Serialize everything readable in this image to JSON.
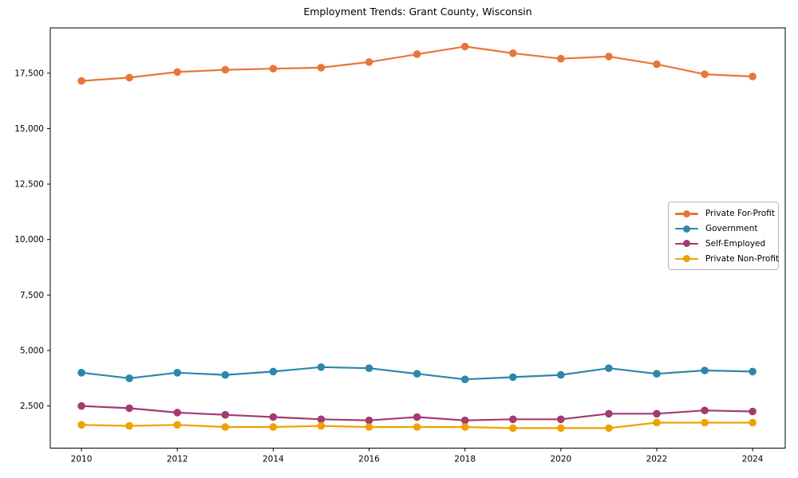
{
  "figure": {
    "title": "Employment Trends: Grant County, Wisconsin"
  },
  "chart_data": {
    "type": "line",
    "title": "Employment Trends: Grant County, Wisconsin",
    "xlabel": "",
    "ylabel": "",
    "x": [
      2010,
      2011,
      2012,
      2013,
      2014,
      2015,
      2016,
      2017,
      2018,
      2019,
      2020,
      2021,
      2022,
      2023,
      2024
    ],
    "series": [
      {
        "name": "Private For-Profit",
        "color": "#E8763B",
        "values": [
          17150,
          17300,
          17550,
          17650,
          17700,
          17750,
          18000,
          18350,
          18700,
          18400,
          18150,
          18250,
          17900,
          17450,
          17350
        ]
      },
      {
        "name": "Government",
        "color": "#2E86AB",
        "values": [
          4000,
          3750,
          4000,
          3900,
          4050,
          4250,
          4200,
          3950,
          3700,
          3800,
          3900,
          4200,
          3950,
          4100,
          4050
        ]
      },
      {
        "name": "Self-Employed",
        "color": "#A23B72",
        "values": [
          2500,
          2400,
          2200,
          2100,
          2000,
          1900,
          1850,
          2000,
          1850,
          1900,
          1900,
          2150,
          2150,
          2300,
          2250
        ]
      },
      {
        "name": "Private Non-Profit",
        "color": "#F0A202",
        "values": [
          1650,
          1600,
          1650,
          1550,
          1550,
          1600,
          1550,
          1550,
          1550,
          1500,
          1500,
          1500,
          1750,
          1750,
          1750
        ]
      }
    ],
    "xticks": [
      2010,
      2012,
      2014,
      2016,
      2018,
      2020,
      2022,
      2024
    ],
    "yticks": [
      2500,
      5000,
      7500,
      10000,
      12500,
      15000,
      17500
    ],
    "xlim": [
      2009.35,
      2024.68
    ],
    "ylim": [
      600,
      19540
    ],
    "grid": false,
    "legend_position": "center right",
    "marker": "circle"
  }
}
